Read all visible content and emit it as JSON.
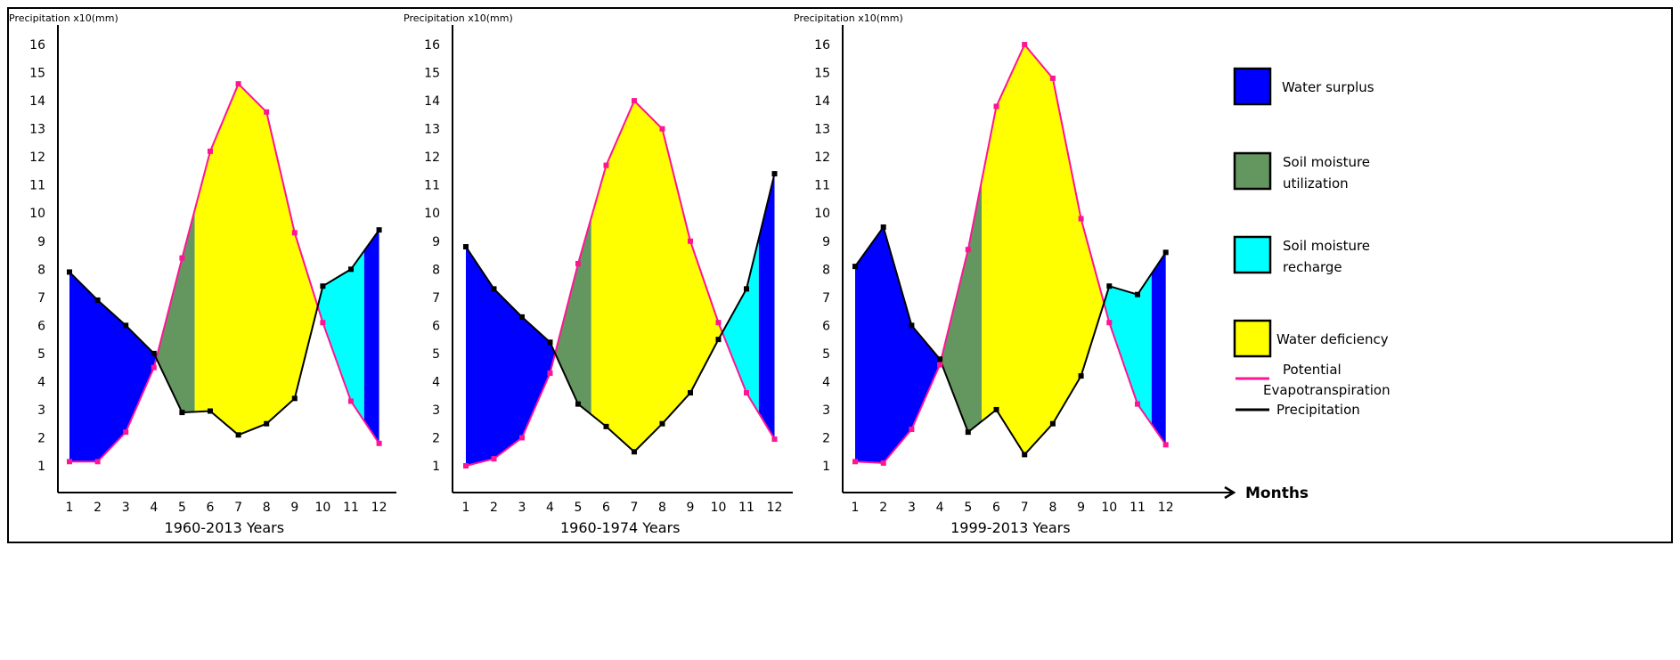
{
  "chart_data": [
    {
      "type": "area",
      "title": "1960-2013 Years",
      "ylabel": "Precipitation x10(mm)",
      "xlabel": "Months",
      "ylim": [
        0,
        16.5
      ],
      "x": [
        1,
        2,
        3,
        4,
        5,
        6,
        7,
        8,
        9,
        10,
        11,
        12
      ],
      "series": [
        {
          "name": "Precipitation",
          "color": "#000000",
          "values": [
            7.9,
            6.9,
            6.0,
            5.0,
            2.9,
            2.95,
            2.1,
            2.5,
            3.4,
            7.4,
            8.0,
            9.4
          ]
        },
        {
          "name": "Potential Evapotranspiration",
          "color": "#ff1493",
          "values": [
            1.15,
            1.15,
            2.2,
            4.5,
            8.4,
            12.2,
            14.6,
            13.6,
            9.3,
            6.1,
            3.3,
            1.8
          ]
        }
      ],
      "utilization_end_month": 5.45,
      "recharge_end_month": 11.47
    },
    {
      "type": "area",
      "title": "1960-1974 Years",
      "ylabel": "Precipitation x10(mm)",
      "xlabel": "Months",
      "ylim": [
        0,
        16.5
      ],
      "x": [
        1,
        2,
        3,
        4,
        5,
        6,
        7,
        8,
        9,
        10,
        11,
        12
      ],
      "series": [
        {
          "name": "Precipitation",
          "color": "#000000",
          "values": [
            8.8,
            7.3,
            6.3,
            5.4,
            3.2,
            2.4,
            1.5,
            2.5,
            3.6,
            5.5,
            7.3,
            11.4
          ]
        },
        {
          "name": "Potential Evapotranspiration",
          "color": "#ff1493",
          "values": [
            1.0,
            1.25,
            2.0,
            4.3,
            8.2,
            11.7,
            14.0,
            13.0,
            9.0,
            6.1,
            3.6,
            1.95
          ]
        }
      ],
      "utilization_end_month": 5.47,
      "recharge_end_month": 11.44
    },
    {
      "type": "area",
      "title": "1999-2013 Years",
      "ylabel": "Precipitation x10(mm)",
      "xlabel": "Months",
      "ylim": [
        0,
        16.5
      ],
      "x": [
        1,
        2,
        3,
        4,
        5,
        6,
        7,
        8,
        9,
        10,
        11,
        12
      ],
      "series": [
        {
          "name": "Precipitation",
          "color": "#000000",
          "values": [
            8.1,
            9.5,
            6.0,
            4.8,
            2.2,
            3.0,
            1.4,
            2.5,
            4.2,
            7.4,
            7.1,
            8.6
          ]
        },
        {
          "name": "Potential Evapotranspiration",
          "color": "#ff1493",
          "values": [
            1.15,
            1.1,
            2.3,
            4.6,
            8.7,
            13.8,
            16.0,
            14.8,
            9.8,
            6.1,
            3.2,
            1.75
          ]
        }
      ],
      "utilization_end_month": 5.48,
      "recharge_end_month": 11.5
    }
  ],
  "y_ticks": [
    1,
    2,
    3,
    4,
    5,
    6,
    7,
    8,
    9,
    10,
    11,
    12,
    13,
    14,
    15,
    16
  ],
  "x_ticks": [
    1,
    2,
    3,
    4,
    5,
    6,
    7,
    8,
    9,
    10,
    11,
    12
  ],
  "x_axis_label": "Months",
  "legend": {
    "position": "right",
    "items": [
      {
        "label": "Water surplus",
        "color": "#0000ff"
      },
      {
        "label": "Soil moisture utilization",
        "line1": "Soil moisture",
        "line2": "utilization",
        "color": "#64965f"
      },
      {
        "label": "Soil moisture recharge",
        "line1": "Soil moisture",
        "line2": "recharge",
        "color": "#00ffff"
      },
      {
        "label": "Water deficiency",
        "color": "#ffff00"
      }
    ],
    "lines": [
      {
        "label": "Potential Evapotranspiration",
        "line1": "Potential",
        "line2": "Evapotranspiration",
        "color": "#ff1493"
      },
      {
        "label": "Precipitation",
        "color": "#000000"
      }
    ]
  }
}
